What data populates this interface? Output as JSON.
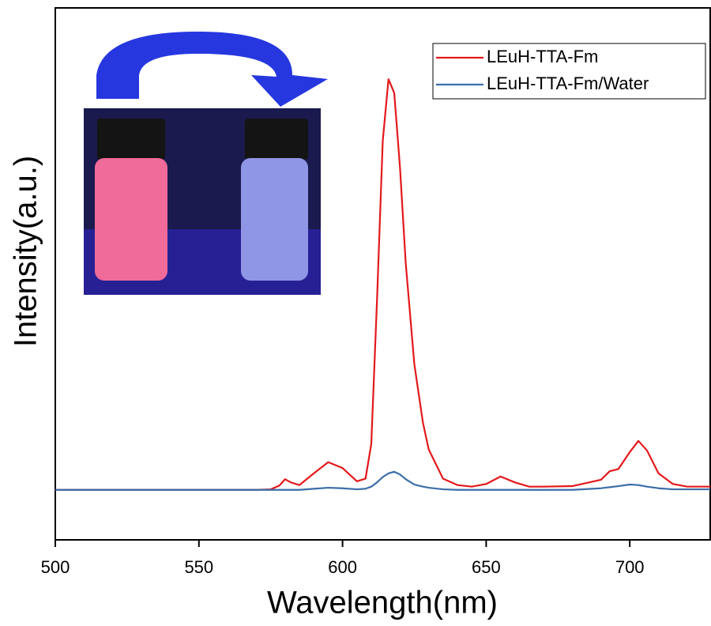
{
  "chart_data": {
    "type": "line",
    "x_label": "Wavelength(nm)",
    "y_label": "Intensity(a.u.)",
    "x": [
      500,
      510,
      520,
      530,
      540,
      550,
      560,
      570,
      575,
      578,
      580,
      582,
      585,
      590,
      595,
      600,
      605,
      608,
      610,
      612,
      614,
      616,
      618,
      620,
      622,
      625,
      628,
      630,
      635,
      640,
      645,
      650,
      655,
      660,
      665,
      670,
      680,
      690,
      693,
      696,
      700,
      703,
      706,
      710,
      715,
      720,
      728
    ],
    "series": [
      {
        "name": "LEuH-TTA-Fm",
        "color": "#e3191c",
        "values": [
          9.4,
          9.4,
          9.4,
          9.4,
          9.4,
          9.4,
          9.4,
          9.4,
          9.5,
          10.2,
          11.4,
          10.8,
          10.3,
          12.5,
          14.6,
          13.5,
          11.0,
          11.5,
          18,
          45,
          75,
          86.6,
          84,
          70,
          52,
          33,
          22,
          17,
          11.5,
          10.3,
          10.0,
          10.5,
          11.9,
          10.8,
          10.0,
          10.0,
          10.1,
          11.3,
          12.9,
          13.3,
          16.5,
          18.6,
          16.8,
          12.5,
          10.5,
          10.0,
          10.0
        ]
      },
      {
        "name": "LEuH-TTA-Fm/Water",
        "color": "#3b6ea8",
        "values": [
          9.4,
          9.4,
          9.4,
          9.4,
          9.4,
          9.4,
          9.4,
          9.4,
          9.4,
          9.4,
          9.4,
          9.4,
          9.4,
          9.6,
          9.8,
          9.7,
          9.5,
          9.6,
          10.0,
          10.8,
          11.8,
          12.5,
          12.8,
          12.3,
          11.4,
          10.4,
          10.0,
          9.8,
          9.5,
          9.4,
          9.4,
          9.4,
          9.4,
          9.4,
          9.4,
          9.4,
          9.4,
          9.7,
          9.9,
          10.1,
          10.4,
          10.3,
          10.0,
          9.7,
          9.5,
          9.5,
          9.5
        ]
      }
    ],
    "xlim": [
      500,
      728
    ],
    "xticks": [
      500,
      550,
      600,
      650,
      700
    ],
    "ylim": [
      0,
      100
    ],
    "legend": "upper right"
  }
}
